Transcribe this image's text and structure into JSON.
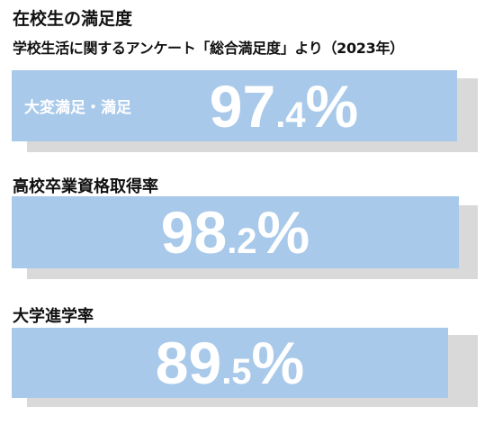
{
  "header": {
    "title": "在校生の満足度",
    "subtitle": "学校生活に関するアンケート「総合満足度」より（2023年）"
  },
  "stats": [
    {
      "label": "大変満足・満足",
      "int": "97",
      "frac": ".4",
      "unit": "%"
    },
    {
      "heading": "高校卒業資格取得率",
      "int": "98",
      "frac": ".2",
      "unit": "%"
    },
    {
      "heading": "大学進学率",
      "int": "89",
      "frac": ".5",
      "unit": "%"
    }
  ]
}
